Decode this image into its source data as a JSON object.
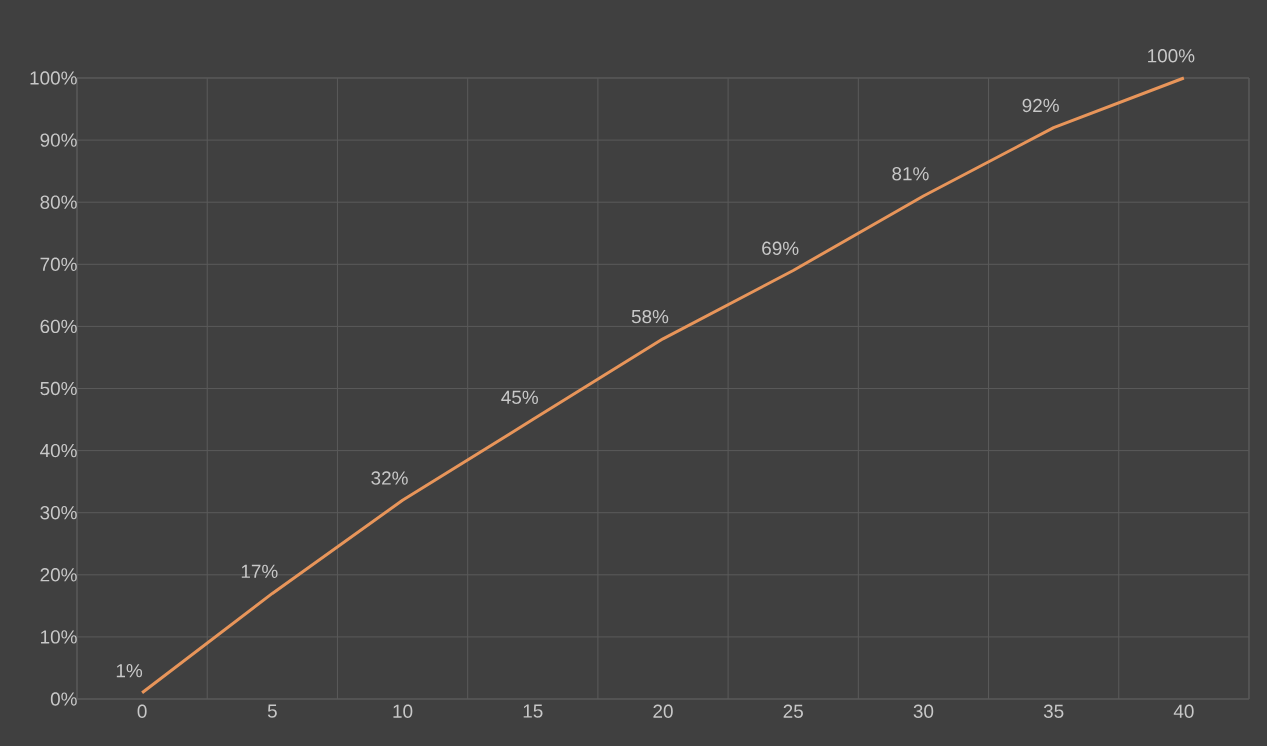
{
  "chart_data": {
    "type": "line",
    "categories": [
      "0",
      "5",
      "10",
      "15",
      "20",
      "25",
      "30",
      "35",
      "40"
    ],
    "values": [
      1,
      17,
      32,
      45,
      58,
      69,
      81,
      92,
      100
    ],
    "value_labels": [
      "1%",
      "17%",
      "32%",
      "45%",
      "58%",
      "69%",
      "81%",
      "92%",
      "100%"
    ],
    "color": "#e8955a",
    "ylim": [
      0,
      100
    ],
    "yticks": [
      {
        "value": 0,
        "label": "0%"
      },
      {
        "value": 10,
        "label": "10%"
      },
      {
        "value": 20,
        "label": "20%"
      },
      {
        "value": 30,
        "label": "30%"
      },
      {
        "value": 40,
        "label": "40%"
      },
      {
        "value": 50,
        "label": "50%"
      },
      {
        "value": 60,
        "label": "60%"
      },
      {
        "value": 70,
        "label": "70%"
      },
      {
        "value": 80,
        "label": "80%"
      },
      {
        "value": 90,
        "label": "90%"
      },
      {
        "value": 100,
        "label": "100%"
      }
    ],
    "grid": true,
    "marker": "none",
    "line_style": "solid"
  }
}
